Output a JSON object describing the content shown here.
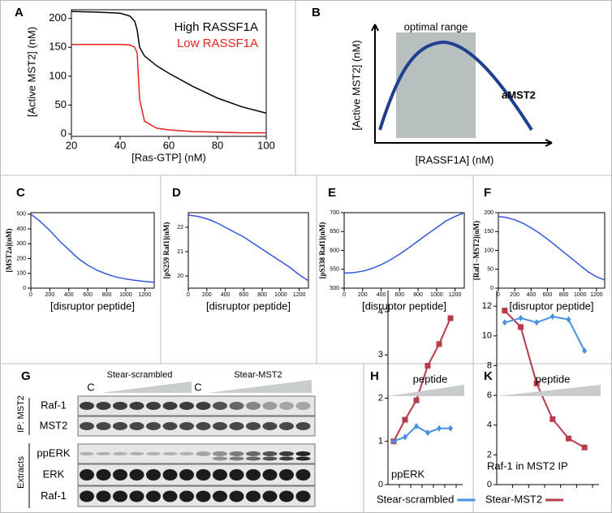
{
  "chart_data": [
    {
      "type": "line",
      "label": "A",
      "xlabel": "[Ras-GTP] (nM)",
      "ylabel": "[Active MST2] (nM)",
      "legend": "upper right",
      "x": [
        20,
        30,
        40,
        44,
        46,
        47,
        48,
        50,
        55,
        60,
        70,
        80,
        90,
        100
      ],
      "series": [
        {
          "name": "High RASSF1A",
          "color": "#000000",
          "values": [
            212,
            211,
            209,
            204,
            195,
            180,
            150,
            135,
            118,
            105,
            82,
            62,
            47,
            36
          ]
        },
        {
          "name": "Low RASSF1A",
          "color": "#e8211d",
          "values": [
            155,
            155,
            155,
            154,
            150,
            140,
            60,
            22,
            10,
            7,
            4,
            3,
            2,
            2
          ]
        }
      ],
      "xlim": [
        20,
        100
      ],
      "ylim": [
        0,
        215
      ],
      "xticks": [
        20,
        40,
        60,
        80,
        100
      ],
      "yticks": [
        0,
        50,
        100,
        150,
        200
      ]
    },
    {
      "type": "line",
      "label": "C",
      "xlabel": "[disruptor peptide]",
      "ylabel": "[MST2a](nM)",
      "color": "#3355dd",
      "x": [
        0,
        100,
        200,
        300,
        400,
        500,
        600,
        700,
        800,
        900,
        1000,
        1100,
        1200,
        1300
      ],
      "values": [
        500,
        450,
        390,
        320,
        260,
        200,
        155,
        120,
        95,
        75,
        62,
        53,
        45,
        40
      ],
      "xlim": [
        0,
        1300
      ],
      "ylim": [
        0,
        510
      ],
      "xticks": [
        0,
        200,
        400,
        600,
        800,
        1000,
        1200
      ],
      "yticks": [
        0,
        100,
        200,
        300,
        400,
        500
      ]
    },
    {
      "type": "line",
      "label": "D",
      "xlabel": "[disruptor peptide]",
      "ylabel": "[pS259 Raf1](nM)",
      "color": "#3355dd",
      "x": [
        0,
        100,
        200,
        300,
        400,
        500,
        600,
        700,
        800,
        900,
        1000,
        1100,
        1200,
        1300
      ],
      "values": [
        22.5,
        22.45,
        22.35,
        22.2,
        22.0,
        21.8,
        21.6,
        21.35,
        21.1,
        20.85,
        20.6,
        20.35,
        20.05,
        19.8
      ],
      "xlim": [
        0,
        1300
      ],
      "ylim": [
        19.5,
        22.6
      ],
      "xticks": [
        0,
        200,
        400,
        600,
        800,
        1000,
        1200
      ],
      "yticks": [
        20,
        21,
        22
      ]
    },
    {
      "type": "line",
      "label": "E",
      "xlabel": "[disruptor peptide]",
      "ylabel": "[pS338 Raf1](nM)",
      "color": "#3355dd",
      "x": [
        0,
        100,
        200,
        300,
        400,
        500,
        600,
        700,
        800,
        900,
        1000,
        1100,
        1200,
        1300
      ],
      "values": [
        540,
        541,
        545,
        552,
        562,
        575,
        590,
        607,
        625,
        643,
        660,
        678,
        690,
        700
      ],
      "xlim": [
        0,
        1300
      ],
      "ylim": [
        500,
        700
      ],
      "xticks": [
        0,
        200,
        400,
        600,
        800,
        1000,
        1200
      ],
      "yticks": [
        500,
        550,
        600,
        650,
        700
      ]
    },
    {
      "type": "line",
      "label": "F",
      "xlabel": "[disruptor peptide]",
      "ylabel": "[Raf1−MST2](nM)",
      "color": "#3355dd",
      "x": [
        0,
        100,
        200,
        300,
        400,
        500,
        600,
        700,
        800,
        900,
        1000,
        1100,
        1200,
        1300
      ],
      "values": [
        190,
        187,
        181,
        172,
        160,
        146,
        130,
        113,
        95,
        78,
        60,
        43,
        30,
        22
      ],
      "xlim": [
        0,
        1300
      ],
      "ylim": [
        0,
        200
      ],
      "xticks": [
        0,
        200,
        400,
        600,
        800,
        1000,
        1200
      ],
      "yticks": [
        0,
        50,
        100,
        150,
        200
      ]
    },
    {
      "type": "line",
      "label": "H",
      "header": "peptide",
      "annotation": "ppERK",
      "legend": "bottom",
      "categories": [
        null,
        null,
        null,
        null,
        null,
        null
      ],
      "series": [
        {
          "color": "#b83b4a",
          "values": [
            1.0,
            1.5,
            1.95,
            2.75,
            3.25,
            3.85
          ]
        },
        {
          "name": "Stear-scrambled",
          "color": "#4a90e2",
          "values": [
            1.0,
            1.1,
            1.35,
            1.2,
            1.3,
            1.3
          ]
        }
      ],
      "ylim": [
        0,
        4.3
      ],
      "yticks": [
        0,
        1,
        2,
        3,
        4
      ]
    },
    {
      "type": "line",
      "label": "K",
      "header": "peptide",
      "annotation": "Raf-1 in MST2 IP",
      "legend": "bottom",
      "categories": [
        null,
        null,
        null,
        null,
        null,
        null
      ],
      "series": [
        {
          "name": "Stear-MST2",
          "color": "#b83b4a",
          "values": [
            11.7,
            10.6,
            6.8,
            4.4,
            3.1,
            2.5
          ]
        },
        {
          "color": "#4a90e2",
          "values": [
            10.9,
            11.2,
            10.9,
            11.3,
            11.1,
            9.0
          ]
        }
      ],
      "ylim": [
        0,
        12.5
      ],
      "yticks": [
        0,
        2,
        4,
        6,
        8,
        10,
        12
      ]
    }
  ],
  "panel_b": {
    "label": "B",
    "annotation": "optimal range",
    "curve_label": "aMST2",
    "ylabel": "[Active MST2] (nM)",
    "xlabel": "[RASSF1A] (nM)"
  },
  "blot": {
    "label": "G",
    "groups": [
      "Stear-scrambled",
      "Stear-MST2"
    ],
    "controls": [
      "C",
      "C"
    ],
    "rows": [
      "Raf-1",
      "MST2",
      "ppERK",
      "ERK",
      "Raf-1"
    ],
    "sections": [
      "IP: MST2",
      "Extracts"
    ]
  }
}
